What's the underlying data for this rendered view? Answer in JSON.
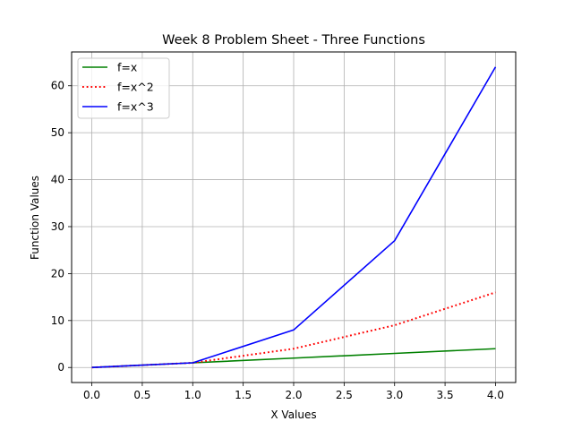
{
  "chart_data": {
    "type": "line",
    "title": "Week 8 Problem Sheet - Three Functions",
    "xlabel": "X Values",
    "ylabel": "Function Values",
    "xlim": [
      -0.2,
      4.2
    ],
    "ylim": [
      -3.2,
      67.2
    ],
    "xticks": [
      0.0,
      0.5,
      1.0,
      1.5,
      2.0,
      2.5,
      3.0,
      3.5,
      4.0
    ],
    "xtick_labels": [
      "0.0",
      "0.5",
      "1.0",
      "1.5",
      "2.0",
      "2.5",
      "3.0",
      "3.5",
      "4.0"
    ],
    "yticks": [
      0,
      10,
      20,
      30,
      40,
      50,
      60
    ],
    "ytick_labels": [
      "0",
      "10",
      "20",
      "30",
      "40",
      "50",
      "60"
    ],
    "grid": true,
    "legend_position": "top-left",
    "x": [
      0,
      1,
      2,
      3,
      4
    ],
    "series": [
      {
        "name": "f=x",
        "values": [
          0,
          1,
          2,
          3,
          4
        ],
        "color": "#008000",
        "style": "solid"
      },
      {
        "name": "f=x^2",
        "values": [
          0,
          1,
          4,
          9,
          16
        ],
        "color": "#ff0000",
        "style": "dotted"
      },
      {
        "name": "f=x^3",
        "values": [
          0,
          1,
          8,
          27,
          64
        ],
        "color": "#0000ff",
        "style": "solid"
      }
    ]
  }
}
